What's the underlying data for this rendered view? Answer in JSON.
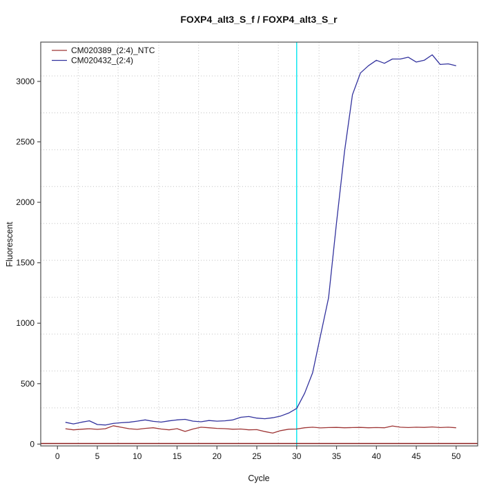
{
  "chart_data": {
    "type": "line",
    "title": "FOXP4_alt3_S_f / FOXP4_alt3_S_r",
    "xlabel": "Cycle",
    "ylabel": "Fluorescent",
    "x_ticks": [
      0,
      5,
      10,
      15,
      20,
      25,
      30,
      35,
      40,
      45,
      50
    ],
    "y_ticks": [
      0,
      500,
      1000,
      1500,
      2000,
      2500,
      3000
    ],
    "x_range": [
      -2.1,
      52.7
    ],
    "y_range": [
      -15,
      3325
    ],
    "grid": {
      "style": "dotted",
      "color": "#c0c0c0",
      "x": [
        2.6,
        7.6,
        12.7,
        17.7,
        22.7,
        27.7,
        32.8,
        37.8,
        42.8,
        47.8
      ],
      "y": [
        300,
        605,
        910,
        1215,
        1520,
        1825,
        2130,
        2435,
        2740,
        3045
      ]
    },
    "threshold_cycle_line": {
      "x": 30,
      "color": "#00e5ee"
    },
    "baseline_line": {
      "y": 5,
      "color": "#8b1a1a"
    },
    "legend_position": "top-left",
    "x": [
      1,
      2,
      3,
      4,
      5,
      6,
      7,
      8,
      9,
      10,
      11,
      12,
      13,
      14,
      15,
      16,
      17,
      18,
      19,
      20,
      21,
      22,
      23,
      24,
      25,
      26,
      27,
      28,
      29,
      30,
      31,
      32,
      33,
      34,
      35,
      36,
      37,
      38,
      39,
      40,
      41,
      42,
      43,
      44,
      45,
      46,
      47,
      48,
      49,
      50
    ],
    "series": [
      {
        "name": "CM020389_(2:4)_NTC",
        "color": "#9e3434",
        "values": [
          127,
          118,
          123,
          127,
          122,
          127,
          152,
          139,
          127,
          122,
          130,
          135,
          125,
          118,
          128,
          105,
          125,
          140,
          135,
          130,
          128,
          123,
          125,
          118,
          120,
          104,
          91,
          112,
          123,
          125,
          135,
          140,
          134,
          137,
          138,
          135,
          137,
          138,
          135,
          137,
          135,
          150,
          140,
          137,
          140,
          138,
          142,
          137,
          140,
          135
        ]
      },
      {
        "name": "CM020432_(2:4)",
        "color": "#31319d",
        "values": [
          180,
          167,
          181,
          193,
          162,
          158,
          171,
          177,
          181,
          190,
          200,
          188,
          182,
          192,
          200,
          205,
          190,
          185,
          195,
          190,
          193,
          200,
          222,
          228,
          215,
          210,
          218,
          232,
          257,
          295,
          420,
          590,
          900,
          1210,
          1830,
          2420,
          2890,
          3070,
          3130,
          3175,
          3150,
          3185,
          3185,
          3200,
          3160,
          3175,
          3220,
          3140,
          3145,
          3130
        ]
      }
    ],
    "axis_color": "#4d4d4d",
    "text_color": "#111111"
  }
}
